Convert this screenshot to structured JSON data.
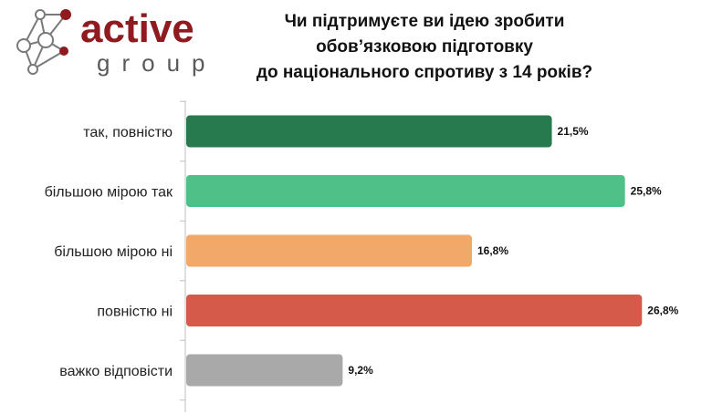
{
  "logo": {
    "word": "active",
    "sub": "group"
  },
  "chart_data": {
    "type": "bar",
    "orientation": "horizontal",
    "title_lines": [
      "Чи підтримуєте ви ідею зробити",
      "обов’язковою підготовку",
      "до національного спротиву з 14 років?"
    ],
    "categories": [
      "так, повністю",
      "більшою мірою так",
      "більшою мірою ні",
      "повністю ні",
      "важко відповісти"
    ],
    "values": [
      21.5,
      25.8,
      16.8,
      26.8,
      9.2
    ],
    "value_labels": [
      "21,5%",
      "25,8%",
      "16,8%",
      "26,8%",
      "9,2%"
    ],
    "colors": [
      "#267a4e",
      "#4fc088",
      "#f2a868",
      "#d55a4a",
      "#a9a9a9"
    ],
    "xlim": [
      0,
      28
    ],
    "grid": false,
    "legend": "none"
  }
}
